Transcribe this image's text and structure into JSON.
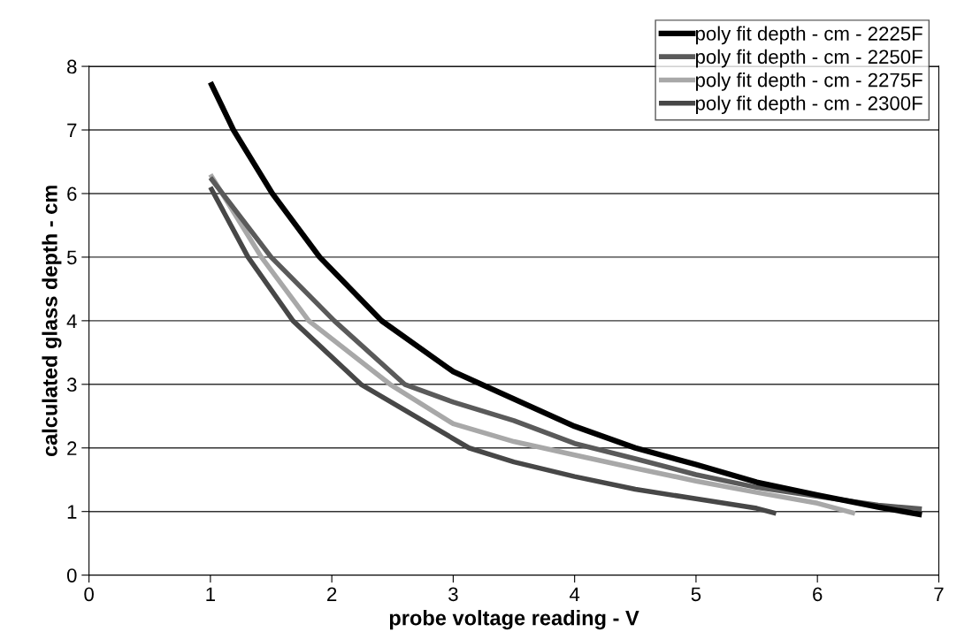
{
  "chart_data": {
    "type": "line",
    "xlabel": "probe voltage reading - V",
    "ylabel": "calculated glass depth - cm",
    "xlim": [
      0,
      7
    ],
    "xticks": [
      0,
      1,
      2,
      3,
      4,
      5,
      6,
      7
    ],
    "ylim": [
      0,
      8
    ],
    "yticks": [
      0,
      1,
      2,
      3,
      4,
      5,
      6,
      7,
      8
    ],
    "grid": "y",
    "legend": "top right",
    "marker": "none",
    "line_style": "solid",
    "series": [
      {
        "name": "poly fit depth - cm - 2225F",
        "color": "#000000",
        "x": [
          1,
          1.19,
          1.51,
          1.9,
          2.41,
          3,
          3.5,
          4,
          4.5,
          5,
          5.5,
          6,
          6.5,
          6.86
        ],
        "values": [
          7.75,
          7.0,
          6.0,
          5.0,
          4.0,
          3.2,
          2.77,
          2.34,
          2.0,
          1.74,
          1.46,
          1.26,
          1.07,
          0.95
        ]
      },
      {
        "name": "poly fit depth - cm - 2250F",
        "color": "#5a5a5a",
        "x": [
          1,
          1.5,
          2.02,
          2.6,
          3,
          3.5,
          4,
          4.5,
          5,
          5.5,
          6,
          6.5,
          6.86
        ],
        "values": [
          6.25,
          5.0,
          4.0,
          3.0,
          2.72,
          2.43,
          2.07,
          1.83,
          1.58,
          1.38,
          1.24,
          1.1,
          1.04
        ]
      },
      {
        "name": "poly fit depth - cm - 2275F",
        "color": "#a8a8a8",
        "x": [
          1,
          1.42,
          1.81,
          2.48,
          3,
          3.5,
          4,
          4.5,
          5,
          5.5,
          6,
          6.31
        ],
        "values": [
          6.3,
          5.0,
          4.0,
          3.0,
          2.38,
          2.1,
          1.89,
          1.68,
          1.48,
          1.3,
          1.13,
          0.97
        ]
      },
      {
        "name": "poly fit depth - cm - 2300F",
        "color": "#474747",
        "x": [
          1,
          1.31,
          1.68,
          2.24,
          3.13,
          3.5,
          4,
          4.5,
          5,
          5.5,
          5.66
        ],
        "values": [
          6.1,
          5.0,
          4.0,
          3.0,
          2.0,
          1.78,
          1.55,
          1.35,
          1.2,
          1.05,
          0.97
        ]
      }
    ]
  }
}
